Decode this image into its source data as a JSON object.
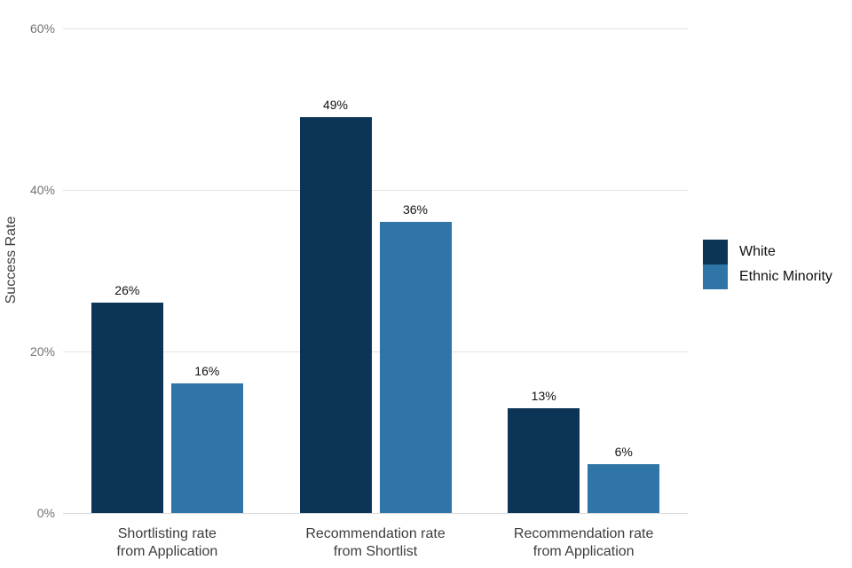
{
  "chart_data": {
    "type": "bar",
    "title": "",
    "xlabel": "",
    "ylabel": "Success Rate",
    "categories": [
      "Shortlisting rate\nfrom Application",
      "Recommendation rate\nfrom Shortlist",
      "Recommendation rate\nfrom Application"
    ],
    "series": [
      {
        "name": "White",
        "values": [
          26,
          49,
          13
        ],
        "labels": [
          "26%",
          "49%",
          "13%"
        ],
        "color": "#0b3457"
      },
      {
        "name": "Ethnic Minority",
        "values": [
          16,
          36,
          6
        ],
        "labels": [
          "16%",
          "36%",
          "6%"
        ],
        "color": "#2f75a8"
      }
    ],
    "ylim": [
      0,
      60
    ],
    "yticks": [
      0,
      20,
      40,
      60
    ],
    "ytick_labels": [
      "0%",
      "20%",
      "40%",
      "60%"
    ],
    "grid": "horizontal",
    "legend_position": "right",
    "background": "#ffffff",
    "gridline_color": "#e3e3e3"
  }
}
